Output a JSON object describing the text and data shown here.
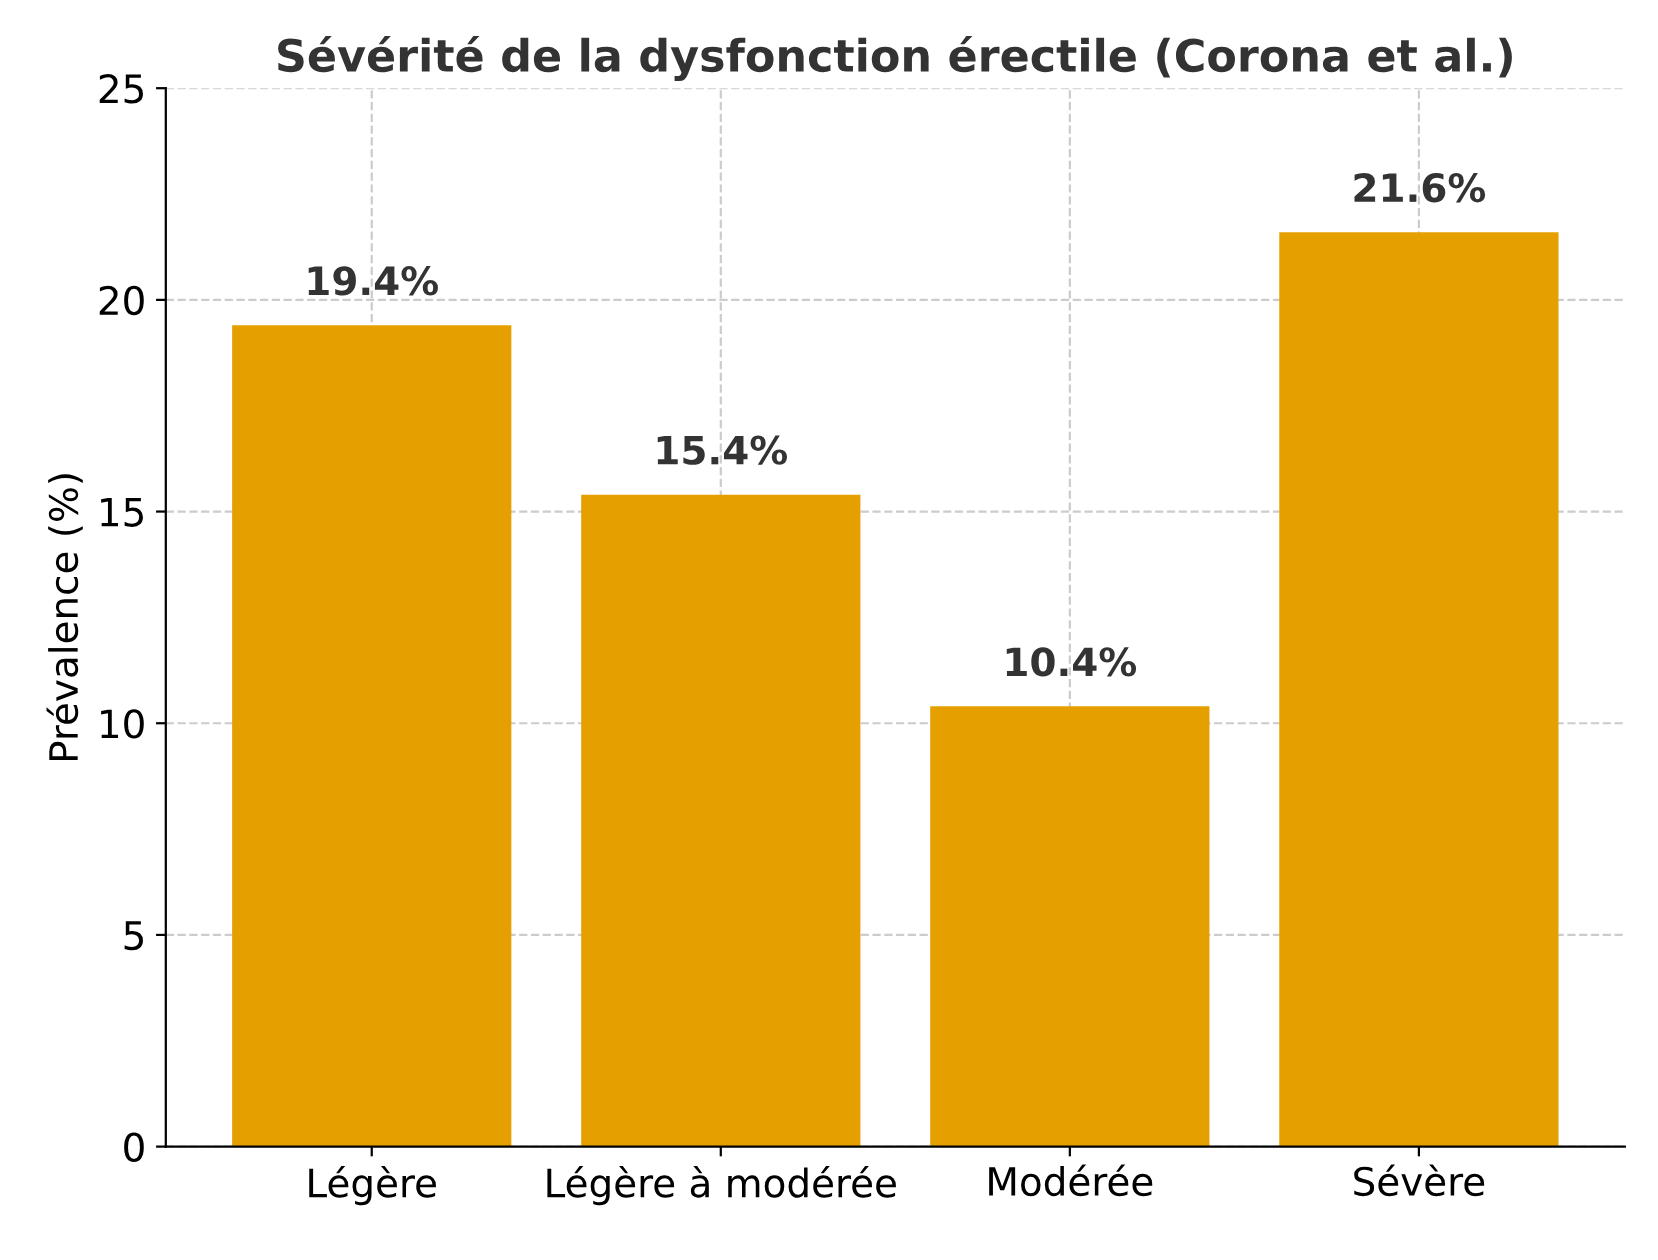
{
  "chart_data": {
    "type": "bar",
    "title": "Sévérité de la dysfonction érectile (Corona et al.)",
    "ylabel": "Prévalence (%)",
    "categories": [
      "Légère",
      "Légère à modérée",
      "Modérée",
      "Sévère"
    ],
    "values": [
      19.4,
      15.4,
      10.4,
      21.6
    ],
    "value_labels": [
      "19.4%",
      "15.4%",
      "10.4%",
      "21.6%"
    ],
    "color": "#e5a000",
    "ylim": [
      0,
      25
    ],
    "yticks": [
      0,
      5,
      10,
      15,
      20,
      25
    ],
    "grid": true
  }
}
